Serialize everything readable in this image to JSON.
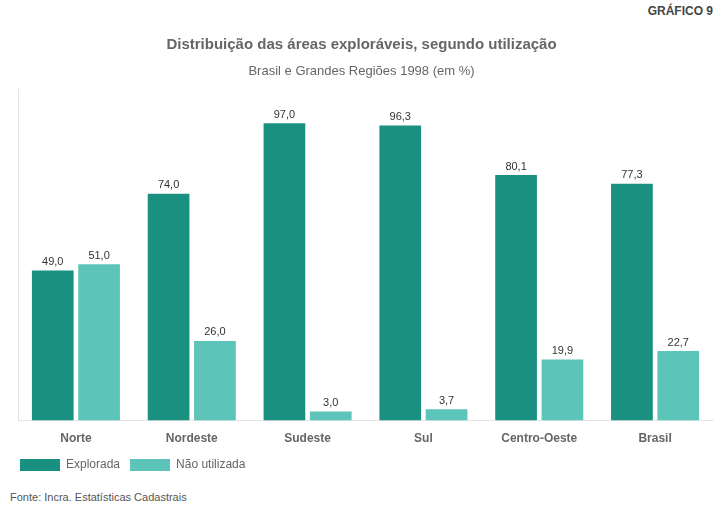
{
  "chart_data": {
    "type": "bar",
    "title": "Distribuição das áreas exploráveis, segundo utilização",
    "subtitle": "Brasil e Grandes Regiões 1998 (em %)",
    "annotations": [
      "GRÁFICO 9",
      "Fonte: Incra. Estatísticas Cadastrais"
    ],
    "categories": [
      "Norte",
      "Nordeste",
      "Sudeste",
      "Sul",
      "Centro-Oeste",
      "Brasil"
    ],
    "series": [
      {
        "name": "Explorada",
        "color": "#1a9080",
        "values": [
          49.0,
          74.0,
          97.0,
          96.3,
          80.1,
          77.3
        ],
        "value_labels": [
          "49,0",
          "74,0",
          "97,0",
          "96,3",
          "80,1",
          "77,3"
        ]
      },
      {
        "name": "Não utilizada",
        "color": "#5cc4b8",
        "values": [
          51.0,
          26.0,
          3.0,
          3.7,
          19.9,
          22.7
        ],
        "value_labels": [
          "51,0",
          "26,0",
          "3,0",
          "3,7",
          "19,9",
          "22,7"
        ]
      }
    ],
    "ylim": [
      0,
      108
    ],
    "data_labels": true,
    "tick_labels": "x",
    "grid": false,
    "legend": "bottom"
  }
}
